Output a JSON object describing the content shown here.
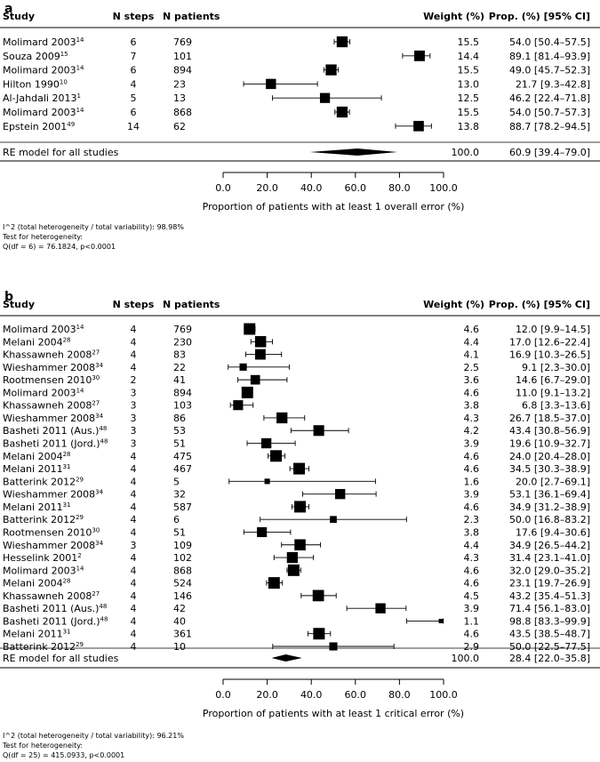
{
  "headers": {
    "study": "Study",
    "steps": "N steps",
    "patients": "N patients",
    "weight": "Weight (%)",
    "prop": "Prop. (%) [95% CI]"
  },
  "chart_data": [
    {
      "type": "forest",
      "panel_label": "a",
      "xlabel": "Proportion of patients with at least 1 overall error (%)",
      "xlim": [
        0,
        100
      ],
      "ticks": [
        "0.0",
        "20.0",
        "40.0",
        "60.0",
        "80.0",
        "100.0"
      ],
      "tick_values": [
        0,
        20,
        40,
        60,
        80,
        100
      ],
      "studies": [
        {
          "name": "Molimard 2003",
          "ref": "14",
          "steps": "6",
          "patients": "769",
          "weight": 15.5,
          "weight_label": "15.5",
          "est": 54.0,
          "lo": 50.4,
          "hi": 57.5,
          "ci_label": "54.0 [50.4–57.5]"
        },
        {
          "name": "Souza 2009",
          "ref": "15",
          "steps": "7",
          "patients": "101",
          "weight": 14.4,
          "weight_label": "14.4",
          "est": 89.1,
          "lo": 81.4,
          "hi": 93.9,
          "ci_label": "89.1 [81.4–93.9]"
        },
        {
          "name": "Molimard 2003",
          "ref": "14",
          "steps": "6",
          "patients": "894",
          "weight": 15.5,
          "weight_label": "15.5",
          "est": 49.0,
          "lo": 45.7,
          "hi": 52.3,
          "ci_label": "49.0 [45.7–52.3]"
        },
        {
          "name": "Hilton 1990",
          "ref": "10",
          "steps": "4",
          "patients": "23",
          "weight": 13.0,
          "weight_label": "13.0",
          "est": 21.7,
          "lo": 9.3,
          "hi": 42.8,
          "ci_label": "21.7 [9.3–42.8]"
        },
        {
          "name": "Al-Jahdali 2013",
          "ref": "1",
          "steps": "5",
          "patients": "13",
          "weight": 12.5,
          "weight_label": "12.5",
          "est": 46.2,
          "lo": 22.4,
          "hi": 71.8,
          "ci_label": "46.2 [22.4–71.8]"
        },
        {
          "name": "Molimard 2003",
          "ref": "14",
          "steps": "6",
          "patients": "868",
          "weight": 15.5,
          "weight_label": "15.5",
          "est": 54.0,
          "lo": 50.7,
          "hi": 57.3,
          "ci_label": "54.0 [50.7–57.3]"
        },
        {
          "name": "Epstein 2001",
          "ref": "49",
          "steps": "14",
          "patients": "62",
          "weight": 13.8,
          "weight_label": "13.8",
          "est": 88.7,
          "lo": 78.2,
          "hi": 94.5,
          "ci_label": "88.7 [78.2–94.5]"
        }
      ],
      "summary": {
        "name": "RE model for all studies",
        "weight_label": "100.0",
        "est": 60.9,
        "lo": 39.4,
        "hi": 79.0,
        "ci_label": "60.9 [39.4–79.0]"
      },
      "heterogeneity": [
        "I^2 (total heterogeneity / total variability): 98.98%",
        "Test for heterogeneity:",
        "Q(df = 6) = 76.1824, p<0.0001"
      ]
    },
    {
      "type": "forest",
      "panel_label": "b",
      "xlabel": "Proportion of patients with at least 1 critical error (%)",
      "xlim": [
        0,
        100
      ],
      "ticks": [
        "0.0",
        "20.0",
        "40.0",
        "60.0",
        "80.0",
        "100.0"
      ],
      "tick_values": [
        0,
        20,
        40,
        60,
        80,
        100
      ],
      "studies": [
        {
          "name": "Molimard 2003",
          "ref": "14",
          "steps": "4",
          "patients": "769",
          "weight": 4.6,
          "weight_label": "4.6",
          "est": 12.0,
          "lo": 9.9,
          "hi": 14.5,
          "ci_label": "12.0 [9.9–14.5]"
        },
        {
          "name": "Melani 2004",
          "ref": "28",
          "steps": "4",
          "patients": "230",
          "weight": 4.4,
          "weight_label": "4.4",
          "est": 17.0,
          "lo": 12.6,
          "hi": 22.4,
          "ci_label": "17.0 [12.6–22.4]"
        },
        {
          "name": "Khassawneh 2008",
          "ref": "27",
          "steps": "4",
          "patients": "83",
          "weight": 4.1,
          "weight_label": "4.1",
          "est": 16.9,
          "lo": 10.3,
          "hi": 26.5,
          "ci_label": "16.9 [10.3–26.5]"
        },
        {
          "name": "Wieshammer 2008",
          "ref": "34",
          "steps": "4",
          "patients": "22",
          "weight": 2.5,
          "weight_label": "2.5",
          "est": 9.1,
          "lo": 2.3,
          "hi": 30.0,
          "ci_label": "9.1 [2.3–30.0]"
        },
        {
          "name": "Rootmensen 2010",
          "ref": "30",
          "steps": "2",
          "patients": "41",
          "weight": 3.6,
          "weight_label": "3.6",
          "est": 14.6,
          "lo": 6.7,
          "hi": 29.0,
          "ci_label": "14.6 [6.7–29.0]"
        },
        {
          "name": "Molimard 2003",
          "ref": "14",
          "steps": "3",
          "patients": "894",
          "weight": 4.6,
          "weight_label": "4.6",
          "est": 11.0,
          "lo": 9.1,
          "hi": 13.2,
          "ci_label": "11.0 [9.1–13.2]"
        },
        {
          "name": "Khassawneh 2008",
          "ref": "27",
          "steps": "3",
          "patients": "103",
          "weight": 3.8,
          "weight_label": "3.8",
          "est": 6.8,
          "lo": 3.3,
          "hi": 13.6,
          "ci_label": "6.8 [3.3–13.6]"
        },
        {
          "name": "Wieshammer 2008",
          "ref": "34",
          "steps": "3",
          "patients": "86",
          "weight": 4.3,
          "weight_label": "4.3",
          "est": 26.7,
          "lo": 18.5,
          "hi": 37.0,
          "ci_label": "26.7 [18.5–37.0]"
        },
        {
          "name": "Basheti 2011 (Aus.)",
          "ref": "48",
          "steps": "3",
          "patients": "53",
          "weight": 4.2,
          "weight_label": "4.2",
          "est": 43.4,
          "lo": 30.8,
          "hi": 56.9,
          "ci_label": "43.4 [30.8–56.9]"
        },
        {
          "name": "Basheti 2011 (Jord.)",
          "ref": "48",
          "steps": "3",
          "patients": "51",
          "weight": 3.9,
          "weight_label": "3.9",
          "est": 19.6,
          "lo": 10.9,
          "hi": 32.7,
          "ci_label": "19.6 [10.9–32.7]"
        },
        {
          "name": "Melani 2004",
          "ref": "28",
          "steps": "4",
          "patients": "475",
          "weight": 4.6,
          "weight_label": "4.6",
          "est": 24.0,
          "lo": 20.4,
          "hi": 28.0,
          "ci_label": "24.0 [20.4–28.0]"
        },
        {
          "name": "Melani 2011",
          "ref": "31",
          "steps": "4",
          "patients": "467",
          "weight": 4.6,
          "weight_label": "4.6",
          "est": 34.5,
          "lo": 30.3,
          "hi": 38.9,
          "ci_label": "34.5 [30.3–38.9]"
        },
        {
          "name": "Batterink 2012",
          "ref": "29",
          "steps": "4",
          "patients": "5",
          "weight": 1.6,
          "weight_label": "1.6",
          "est": 20.0,
          "lo": 2.7,
          "hi": 69.1,
          "ci_label": "20.0 [2.7–69.1]"
        },
        {
          "name": "Wieshammer 2008",
          "ref": "34",
          "steps": "4",
          "patients": "32",
          "weight": 3.9,
          "weight_label": "3.9",
          "est": 53.1,
          "lo": 36.1,
          "hi": 69.4,
          "ci_label": "53.1 [36.1–69.4]"
        },
        {
          "name": "Melani 2011",
          "ref": "31",
          "steps": "4",
          "patients": "587",
          "weight": 4.6,
          "weight_label": "4.6",
          "est": 34.9,
          "lo": 31.2,
          "hi": 38.9,
          "ci_label": "34.9 [31.2–38.9]"
        },
        {
          "name": "Batterink 2012",
          "ref": "29",
          "steps": "4",
          "patients": "6",
          "weight": 2.3,
          "weight_label": "2.3",
          "est": 50.0,
          "lo": 16.8,
          "hi": 83.2,
          "ci_label": "50.0 [16.8–83.2]"
        },
        {
          "name": "Rootmensen 2010",
          "ref": "30",
          "steps": "4",
          "patients": "51",
          "weight": 3.8,
          "weight_label": "3.8",
          "est": 17.6,
          "lo": 9.4,
          "hi": 30.6,
          "ci_label": "17.6 [9.4–30.6]"
        },
        {
          "name": "Wieshammer 2008",
          "ref": "34",
          "steps": "3",
          "patients": "109",
          "weight": 4.4,
          "weight_label": "4.4",
          "est": 34.9,
          "lo": 26.5,
          "hi": 44.2,
          "ci_label": "34.9 [26.5–44.2]"
        },
        {
          "name": "Hesselink 2001",
          "ref": "2",
          "steps": "4",
          "patients": "102",
          "weight": 4.3,
          "weight_label": "4.3",
          "est": 31.4,
          "lo": 23.1,
          "hi": 41.0,
          "ci_label": "31.4 [23.1–41.0]"
        },
        {
          "name": "Molimard 2003",
          "ref": "14",
          "steps": "4",
          "patients": "868",
          "weight": 4.6,
          "weight_label": "4.6",
          "est": 32.0,
          "lo": 29.0,
          "hi": 35.2,
          "ci_label": "32.0 [29.0–35.2]"
        },
        {
          "name": "Melani 2004",
          "ref": "28",
          "steps": "4",
          "patients": "524",
          "weight": 4.6,
          "weight_label": "4.6",
          "est": 23.1,
          "lo": 19.7,
          "hi": 26.9,
          "ci_label": "23.1 [19.7–26.9]"
        },
        {
          "name": "Khassawneh 2008",
          "ref": "27",
          "steps": "4",
          "patients": "146",
          "weight": 4.5,
          "weight_label": "4.5",
          "est": 43.2,
          "lo": 35.4,
          "hi": 51.3,
          "ci_label": "43.2 [35.4–51.3]"
        },
        {
          "name": "Basheti 2011 (Aus.)",
          "ref": "48",
          "steps": "4",
          "patients": "42",
          "weight": 3.9,
          "weight_label": "3.9",
          "est": 71.4,
          "lo": 56.1,
          "hi": 83.0,
          "ci_label": "71.4 [56.1–83.0]"
        },
        {
          "name": "Basheti 2011 (Jord.)",
          "ref": "48",
          "steps": "4",
          "patients": "40",
          "weight": 1.1,
          "weight_label": "1.1",
          "est": 98.8,
          "lo": 83.3,
          "hi": 99.9,
          "ci_label": "98.8 [83.3–99.9]"
        },
        {
          "name": "Melani 2011",
          "ref": "31",
          "steps": "4",
          "patients": "361",
          "weight": 4.6,
          "weight_label": "4.6",
          "est": 43.5,
          "lo": 38.5,
          "hi": 48.7,
          "ci_label": "43.5 [38.5–48.7]"
        },
        {
          "name": "Batterink 2012",
          "ref": "29",
          "steps": "4",
          "patients": "10",
          "weight": 2.9,
          "weight_label": "2.9",
          "est": 50.0,
          "lo": 22.5,
          "hi": 77.5,
          "ci_label": "50.0 [22.5–77.5]"
        }
      ],
      "summary": {
        "name": "RE model for all studies",
        "weight_label": "100.0",
        "est": 28.4,
        "lo": 22.0,
        "hi": 35.8,
        "ci_label": "28.4 [22.0–35.8]"
      },
      "heterogeneity": [
        "I^2 (total heterogeneity / total variability): 96.21%",
        "Test for heterogeneity:",
        "Q(df = 25) = 415.0933, p<0.0001"
      ]
    }
  ]
}
